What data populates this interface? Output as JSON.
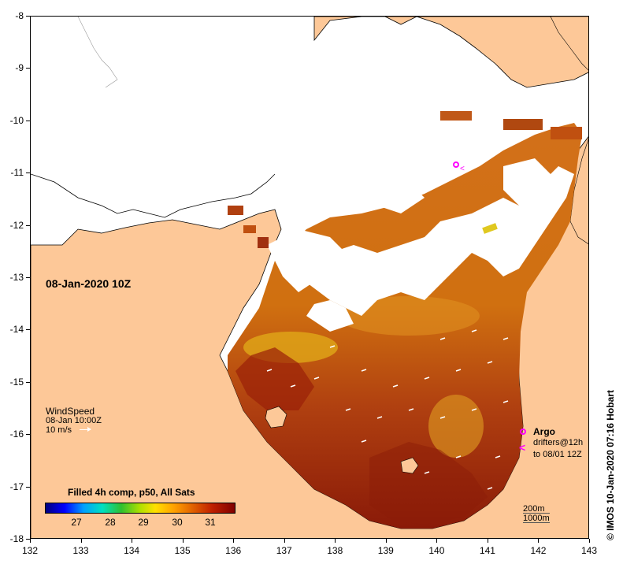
{
  "map": {
    "title_date": "08-Jan-2020 10Z",
    "lon_ticks": [
      "132",
      "133",
      "134",
      "135",
      "136",
      "137",
      "138",
      "139",
      "140",
      "141",
      "142",
      "143"
    ],
    "lat_ticks": [
      "-8",
      "-9",
      "-10",
      "-11",
      "-12",
      "-13",
      "-14",
      "-15",
      "-16",
      "-17",
      "-18"
    ],
    "colors": {
      "land": "#fdc898",
      "ocean_missing": "#ffffff",
      "coast_line": "#000000"
    }
  },
  "wind": {
    "title": "WindSpeed",
    "time": "08-Jan 10:00Z",
    "scale": "10 m/s"
  },
  "legend": {
    "title": "Filled 4h comp, p50, All Sats",
    "ticks": [
      "27",
      "28",
      "29",
      "30",
      "31"
    ]
  },
  "markers": {
    "argo_label": "Argo",
    "drifters_line1": "drifters@12h",
    "drifters_line2": "to 08/01 12Z",
    "argo_color": "#ff00ff"
  },
  "depth": {
    "contour1": "200m",
    "contour2": "1000m"
  },
  "credit": "© IMOS 10-Jan-2020 07:16 Hobart"
}
